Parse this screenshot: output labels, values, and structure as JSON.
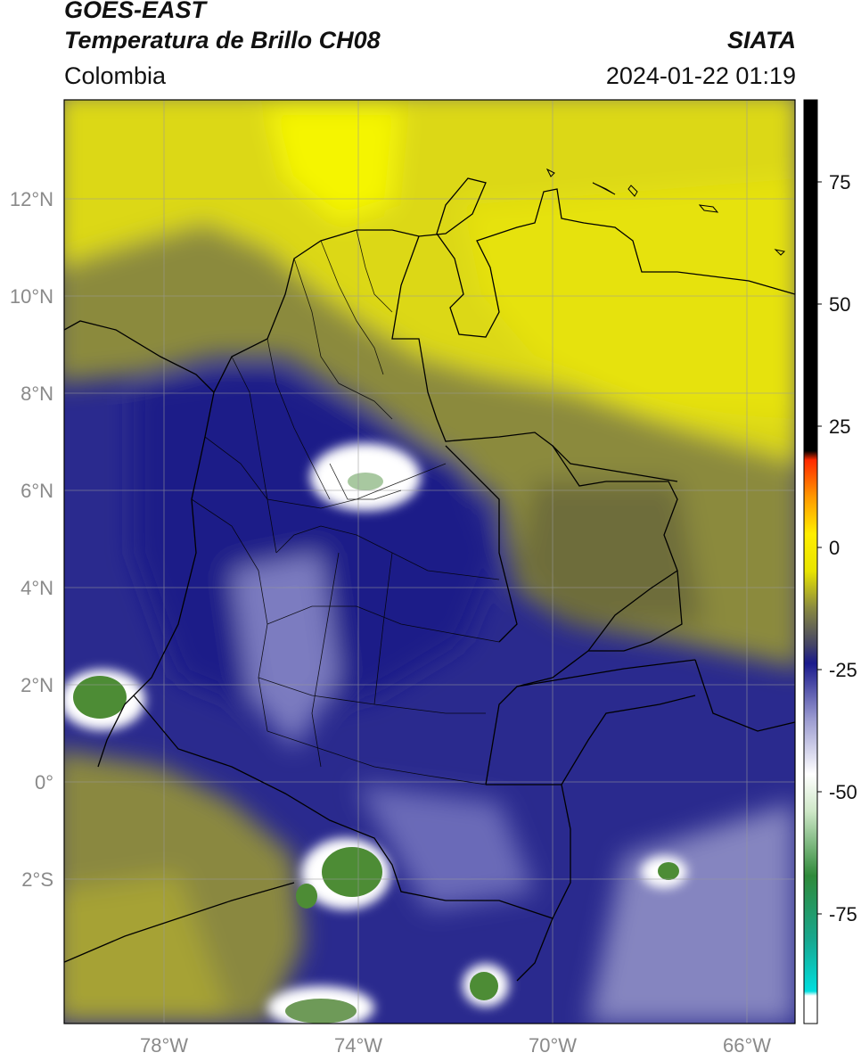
{
  "header": {
    "satellite": "GOES-EAST",
    "product": "Temperatura de Brillo CH08",
    "region": "Colombia",
    "source": "SIATA",
    "datetime": "2024-01-22 01:19"
  },
  "map": {
    "lat_labels": [
      "12°N",
      "10°N",
      "8°N",
      "6°N",
      "4°N",
      "2°N",
      "0°",
      "2°S"
    ],
    "lon_labels": [
      "78°W",
      "74°W",
      "70°W",
      "66°W"
    ],
    "lat_range": [
      -5,
      14
    ],
    "lon_range": [
      -80,
      -65
    ],
    "gridlines": true
  },
  "colorbar": {
    "ticks": [
      "75",
      "50",
      "25",
      "0",
      "-25",
      "-50",
      "-75"
    ],
    "range": [
      -95,
      90
    ],
    "colors": {
      "black": "#000000",
      "red": "#ff2a00",
      "orange": "#ff9900",
      "yellow": "#f2ee00",
      "olive": "#6b6a35",
      "navy": "#1a1a8c",
      "lavender": "#b8b8e0",
      "white": "#ffffff",
      "green": "#3c8a2e",
      "cyan": "#00e0e0"
    }
  }
}
